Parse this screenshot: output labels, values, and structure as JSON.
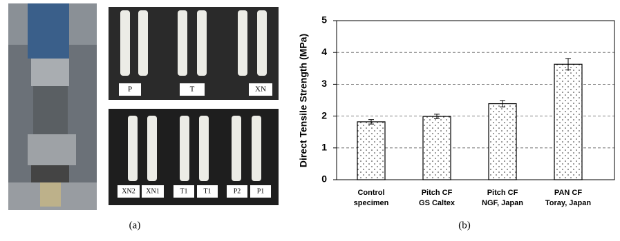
{
  "photos": {
    "top_labels": [
      "P",
      "T",
      "XN"
    ],
    "bottom_labels": [
      "XN2",
      "XN1",
      "T1",
      "T1",
      "P2",
      "P1"
    ]
  },
  "captions": [
    "(a)",
    "(b)"
  ],
  "chart_data": {
    "type": "bar",
    "y_label": "Direct Tensile Strength (MPa)",
    "categories": [
      [
        "Control",
        "specimen"
      ],
      [
        "Pitch CF",
        "GS Caltex"
      ],
      [
        "Pitch CF",
        "NGF, Japan"
      ],
      [
        "PAN CF",
        "Toray, Japan"
      ]
    ],
    "values": [
      1.82,
      1.99,
      2.39,
      3.63
    ],
    "errors": [
      0.07,
      0.07,
      0.1,
      0.18
    ],
    "color": "#ffffff",
    "ylim": [
      0,
      5
    ],
    "yticks": [
      0,
      1,
      2,
      3,
      4,
      5
    ],
    "grid": true
  }
}
